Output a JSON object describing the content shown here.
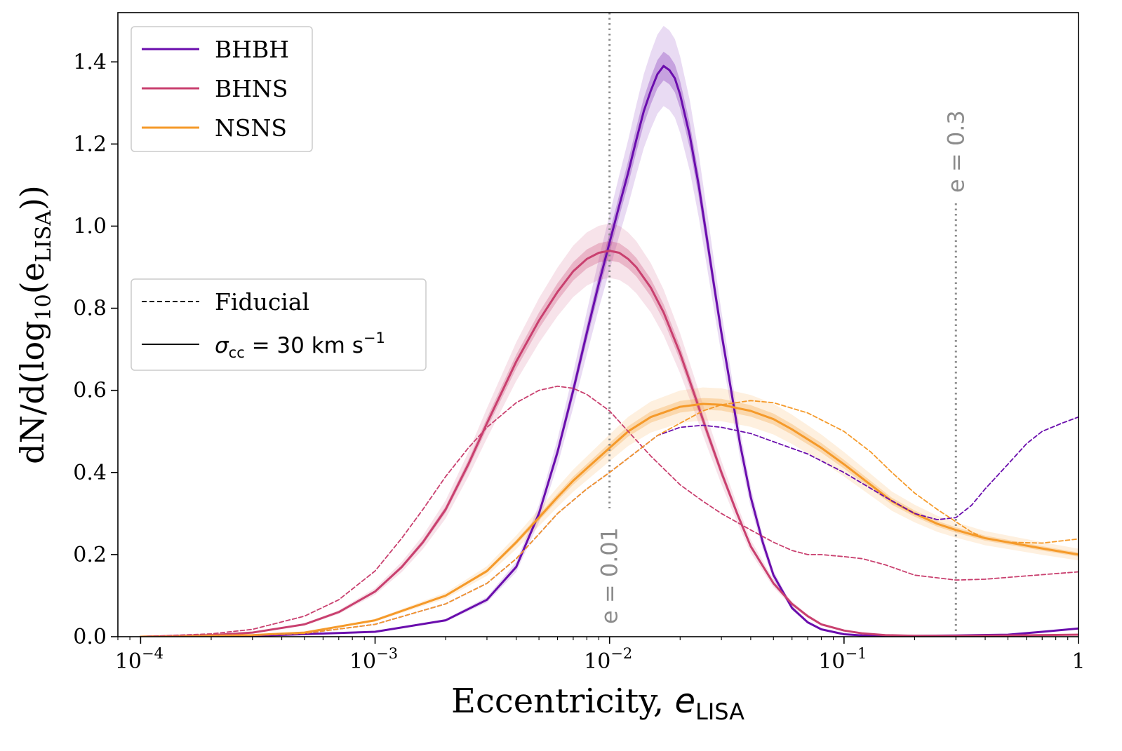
{
  "chart_data": {
    "type": "line",
    "xscale": "log",
    "xlim": [
      8e-05,
      1
    ],
    "ylim": [
      0,
      1.52
    ],
    "xlabel": {
      "main": "Eccentricity, ",
      "var": "e",
      "sub": "LISA"
    },
    "ylabel": {
      "pre": "dN/d(log",
      "sub1": "10",
      "mid": "(e",
      "sub2": "LISA",
      "post": "))"
    },
    "xticks": [
      {
        "value": 0.0001,
        "base": "10",
        "exp": "−4"
      },
      {
        "value": 0.001,
        "base": "10",
        "exp": "−3"
      },
      {
        "value": 0.01,
        "base": "10",
        "exp": "−2"
      },
      {
        "value": 0.1,
        "base": "10",
        "exp": "−1"
      },
      {
        "value": 1,
        "base": "1",
        "exp": ""
      }
    ],
    "yticks": [
      {
        "value": 0.0,
        "label": "0.0"
      },
      {
        "value": 0.2,
        "label": "0.2"
      },
      {
        "value": 0.4,
        "label": "0.4"
      },
      {
        "value": 0.6,
        "label": "0.6"
      },
      {
        "value": 0.8,
        "label": "0.8"
      },
      {
        "value": 1.0,
        "label": "1.0"
      },
      {
        "value": 1.2,
        "label": "1.2"
      },
      {
        "value": 1.4,
        "label": "1.4"
      }
    ],
    "reference_lines": [
      {
        "x": 0.01,
        "label": "e = 0.01",
        "label_position": "bottom"
      },
      {
        "x": 0.3,
        "label": "e = 0.3",
        "label_position": "top"
      }
    ],
    "legend_populations": {
      "placement": "upper-left",
      "entries": [
        {
          "label": "BHBH",
          "color": "#6a0dad"
        },
        {
          "label": "BHNS",
          "color": "#c9406f"
        },
        {
          "label": "NSNS",
          "color": "#f59a2a"
        }
      ]
    },
    "legend_models": {
      "placement": "center-left",
      "entries": [
        {
          "style": "dashed",
          "label": "Fiducial"
        },
        {
          "style": "solid",
          "label_sym": "σ",
          "label_sub": "cc",
          "label_rest": " = 30 km s",
          "label_sup": "−1"
        }
      ]
    },
    "series": [
      {
        "name": "BHBH",
        "model": "σcc = 30 km s−1",
        "style": "solid",
        "color": "#6a0dad",
        "band": true,
        "x": [
          0.0001,
          0.0003,
          0.001,
          0.002,
          0.003,
          0.004,
          0.005,
          0.006,
          0.007,
          0.008,
          0.009,
          0.01,
          0.011,
          0.012,
          0.013,
          0.014,
          0.015,
          0.016,
          0.017,
          0.018,
          0.019,
          0.02,
          0.022,
          0.024,
          0.026,
          0.028,
          0.03,
          0.033,
          0.036,
          0.04,
          0.045,
          0.05,
          0.06,
          0.07,
          0.08,
          0.1,
          0.12,
          0.15,
          0.2,
          0.3,
          0.5,
          0.7,
          1.0
        ],
        "y": [
          0.0,
          0.002,
          0.012,
          0.04,
          0.09,
          0.17,
          0.3,
          0.45,
          0.6,
          0.74,
          0.86,
          0.96,
          1.05,
          1.13,
          1.21,
          1.28,
          1.33,
          1.37,
          1.39,
          1.38,
          1.36,
          1.32,
          1.22,
          1.1,
          0.97,
          0.85,
          0.74,
          0.6,
          0.47,
          0.34,
          0.23,
          0.15,
          0.07,
          0.035,
          0.018,
          0.006,
          0.003,
          0.002,
          0.002,
          0.003,
          0.005,
          0.012,
          0.02
        ]
      },
      {
        "name": "BHNS",
        "model": "σcc = 30 km s−1",
        "style": "solid",
        "color": "#c9406f",
        "band": true,
        "x": [
          0.0001,
          0.0002,
          0.0003,
          0.0005,
          0.0007,
          0.001,
          0.0013,
          0.0016,
          0.002,
          0.0025,
          0.003,
          0.0035,
          0.004,
          0.005,
          0.006,
          0.007,
          0.008,
          0.009,
          0.01,
          0.011,
          0.012,
          0.013,
          0.015,
          0.017,
          0.02,
          0.023,
          0.026,
          0.03,
          0.035,
          0.04,
          0.05,
          0.06,
          0.07,
          0.08,
          0.1,
          0.12,
          0.15,
          0.2,
          0.3,
          0.5,
          1.0
        ],
        "y": [
          0.0,
          0.004,
          0.01,
          0.03,
          0.06,
          0.11,
          0.17,
          0.23,
          0.31,
          0.42,
          0.52,
          0.6,
          0.67,
          0.77,
          0.84,
          0.89,
          0.92,
          0.935,
          0.94,
          0.935,
          0.92,
          0.9,
          0.85,
          0.79,
          0.69,
          0.59,
          0.5,
          0.4,
          0.3,
          0.22,
          0.13,
          0.08,
          0.05,
          0.03,
          0.015,
          0.008,
          0.004,
          0.002,
          0.002,
          0.003,
          0.005
        ]
      },
      {
        "name": "NSNS",
        "model": "σcc = 30 km s−1",
        "style": "solid",
        "color": "#f59a2a",
        "band": true,
        "x": [
          0.0001,
          0.0003,
          0.0005,
          0.001,
          0.002,
          0.003,
          0.004,
          0.005,
          0.006,
          0.007,
          0.008,
          0.01,
          0.012,
          0.015,
          0.02,
          0.025,
          0.03,
          0.04,
          0.05,
          0.06,
          0.08,
          0.1,
          0.13,
          0.16,
          0.2,
          0.25,
          0.3,
          0.4,
          0.5,
          0.7,
          1.0
        ],
        "y": [
          0.0,
          0.004,
          0.01,
          0.04,
          0.1,
          0.16,
          0.23,
          0.29,
          0.34,
          0.38,
          0.41,
          0.46,
          0.5,
          0.535,
          0.56,
          0.567,
          0.565,
          0.55,
          0.53,
          0.505,
          0.46,
          0.42,
          0.37,
          0.33,
          0.3,
          0.275,
          0.26,
          0.24,
          0.23,
          0.215,
          0.2
        ]
      },
      {
        "name": "BHBH",
        "model": "Fiducial",
        "style": "dashed",
        "color": "#6a0dad",
        "band": false,
        "x": [
          0.0001,
          0.0003,
          0.0005,
          0.001,
          0.002,
          0.003,
          0.004,
          0.005,
          0.006,
          0.008,
          0.01,
          0.013,
          0.016,
          0.02,
          0.025,
          0.03,
          0.04,
          0.05,
          0.07,
          0.1,
          0.15,
          0.2,
          0.25,
          0.3,
          0.35,
          0.4,
          0.5,
          0.6,
          0.7,
          0.85,
          1.0
        ],
        "y": [
          0.0,
          0.003,
          0.008,
          0.03,
          0.08,
          0.13,
          0.19,
          0.25,
          0.3,
          0.36,
          0.4,
          0.45,
          0.49,
          0.51,
          0.515,
          0.51,
          0.495,
          0.475,
          0.445,
          0.4,
          0.34,
          0.3,
          0.285,
          0.29,
          0.32,
          0.36,
          0.42,
          0.47,
          0.5,
          0.52,
          0.535
        ]
      },
      {
        "name": "BHNS",
        "model": "Fiducial",
        "style": "dashed",
        "color": "#c9406f",
        "band": false,
        "x": [
          0.0001,
          0.0002,
          0.0003,
          0.0005,
          0.0007,
          0.001,
          0.0013,
          0.0016,
          0.002,
          0.0025,
          0.003,
          0.004,
          0.005,
          0.006,
          0.007,
          0.008,
          0.01,
          0.012,
          0.015,
          0.02,
          0.025,
          0.03,
          0.04,
          0.05,
          0.06,
          0.07,
          0.08,
          0.1,
          0.12,
          0.15,
          0.2,
          0.3,
          0.4,
          0.6,
          1.0
        ],
        "y": [
          0.0,
          0.007,
          0.018,
          0.05,
          0.09,
          0.16,
          0.24,
          0.31,
          0.39,
          0.46,
          0.51,
          0.57,
          0.6,
          0.61,
          0.605,
          0.59,
          0.55,
          0.5,
          0.44,
          0.37,
          0.33,
          0.3,
          0.26,
          0.23,
          0.21,
          0.2,
          0.2,
          0.195,
          0.19,
          0.175,
          0.15,
          0.138,
          0.14,
          0.148,
          0.158
        ]
      },
      {
        "name": "NSNS",
        "model": "Fiducial",
        "style": "dashed",
        "color": "#f59a2a",
        "band": false,
        "x": [
          0.0001,
          0.0003,
          0.0005,
          0.001,
          0.002,
          0.003,
          0.004,
          0.005,
          0.006,
          0.008,
          0.01,
          0.013,
          0.016,
          0.02,
          0.025,
          0.03,
          0.04,
          0.05,
          0.07,
          0.1,
          0.13,
          0.16,
          0.2,
          0.25,
          0.3,
          0.35,
          0.4,
          0.5,
          0.7,
          1.0
        ],
        "y": [
          0.0,
          0.003,
          0.008,
          0.03,
          0.08,
          0.13,
          0.19,
          0.25,
          0.3,
          0.36,
          0.4,
          0.45,
          0.49,
          0.52,
          0.55,
          0.565,
          0.575,
          0.57,
          0.545,
          0.5,
          0.45,
          0.4,
          0.35,
          0.31,
          0.28,
          0.255,
          0.24,
          0.23,
          0.228,
          0.238
        ]
      }
    ]
  }
}
